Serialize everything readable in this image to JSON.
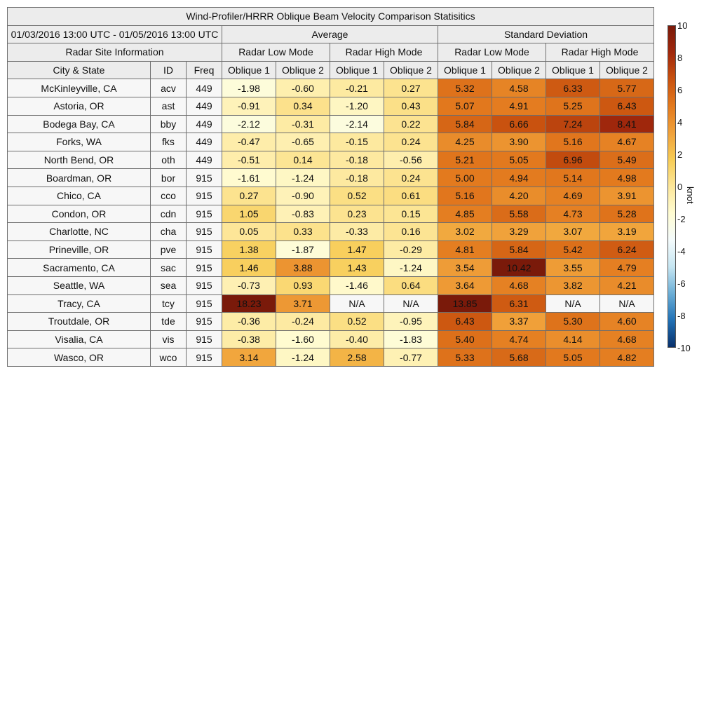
{
  "title": "Wind-Profiler/HRRR Oblique Beam Velocity Comparison Statisitics",
  "date_range": "01/03/2016 13:00 UTC - 01/05/2016 13:00 UTC",
  "group_average": "Average",
  "group_std": "Standard Deviation",
  "site_info_label": "Radar Site Information",
  "mode_low": "Radar Low Mode",
  "mode_high": "Radar High Mode",
  "col_city": "City & State",
  "col_id": "ID",
  "col_freq": "Freq",
  "col_ob1": "Oblique 1",
  "col_ob2": "Oblique 2",
  "colorbar": {
    "unit": "knot",
    "ticks": [
      "10",
      "8",
      "6",
      "4",
      "2",
      "0",
      "-2",
      "-4",
      "-6",
      "-8",
      "-10"
    ],
    "range": [
      -10,
      10
    ],
    "colors": [
      "#08306b",
      "#2171b5",
      "#6baed6",
      "#c6e6f2",
      "#f4fbfc",
      "#fffcd2",
      "#fde79a",
      "#f7cc55",
      "#f0a13a",
      "#e37a1e",
      "#c9520f",
      "#a1280c",
      "#7a1a0a"
    ]
  },
  "chart_data": {
    "type": "table",
    "title": "Wind-Profiler/HRRR Oblique Beam Velocity Comparison Statisitics",
    "columns": [
      "City & State",
      "ID",
      "Freq",
      "Average Low Oblique 1",
      "Average Low Oblique 2",
      "Average High Oblique 1",
      "Average High Oblique 2",
      "Std Low Oblique 1",
      "Std Low Oblique 2",
      "Std High Oblique 1",
      "Std High Oblique 2"
    ],
    "rows": [
      {
        "city": "McKinleyville, CA",
        "id": "acv",
        "freq": "449",
        "values": [
          "-1.98",
          "-0.60",
          "-0.21",
          "0.27",
          "5.32",
          "4.58",
          "6.33",
          "5.77"
        ]
      },
      {
        "city": "Astoria, OR",
        "id": "ast",
        "freq": "449",
        "values": [
          "-0.91",
          "0.34",
          "-1.20",
          "0.43",
          "5.07",
          "4.91",
          "5.25",
          "6.43"
        ]
      },
      {
        "city": "Bodega Bay, CA",
        "id": "bby",
        "freq": "449",
        "values": [
          "-2.12",
          "-0.31",
          "-2.14",
          "0.22",
          "5.84",
          "6.66",
          "7.24",
          "8.41"
        ]
      },
      {
        "city": "Forks, WA",
        "id": "fks",
        "freq": "449",
        "values": [
          "-0.47",
          "-0.65",
          "-0.15",
          "0.24",
          "4.25",
          "3.90",
          "5.16",
          "4.67"
        ]
      },
      {
        "city": "North Bend, OR",
        "id": "oth",
        "freq": "449",
        "values": [
          "-0.51",
          "0.14",
          "-0.18",
          "-0.56",
          "5.21",
          "5.05",
          "6.96",
          "5.49"
        ]
      },
      {
        "city": "Boardman, OR",
        "id": "bor",
        "freq": "915",
        "values": [
          "-1.61",
          "-1.24",
          "-0.18",
          "0.24",
          "5.00",
          "4.94",
          "5.14",
          "4.98"
        ]
      },
      {
        "city": "Chico, CA",
        "id": "cco",
        "freq": "915",
        "values": [
          "0.27",
          "-0.90",
          "0.52",
          "0.61",
          "5.16",
          "4.20",
          "4.69",
          "3.91"
        ]
      },
      {
        "city": "Condon, OR",
        "id": "cdn",
        "freq": "915",
        "values": [
          "1.05",
          "-0.83",
          "0.23",
          "0.15",
          "4.85",
          "5.58",
          "4.73",
          "5.28"
        ]
      },
      {
        "city": "Charlotte, NC",
        "id": "cha",
        "freq": "915",
        "values": [
          "0.05",
          "0.33",
          "-0.33",
          "0.16",
          "3.02",
          "3.29",
          "3.07",
          "3.19"
        ]
      },
      {
        "city": "Prineville, OR",
        "id": "pve",
        "freq": "915",
        "values": [
          "1.38",
          "-1.87",
          "1.47",
          "-0.29",
          "4.81",
          "5.84",
          "5.42",
          "6.24"
        ]
      },
      {
        "city": "Sacramento, CA",
        "id": "sac",
        "freq": "915",
        "values": [
          "1.46",
          "3.88",
          "1.43",
          "-1.24",
          "3.54",
          "10.42",
          "3.55",
          "4.79"
        ]
      },
      {
        "city": "Seattle, WA",
        "id": "sea",
        "freq": "915",
        "values": [
          "-0.73",
          "0.93",
          "-1.46",
          "0.64",
          "3.64",
          "4.68",
          "3.82",
          "4.21"
        ]
      },
      {
        "city": "Tracy, CA",
        "id": "tcy",
        "freq": "915",
        "values": [
          "18.23",
          "3.71",
          "N/A",
          "N/A",
          "13.85",
          "6.31",
          "N/A",
          "N/A"
        ]
      },
      {
        "city": "Troutdale, OR",
        "id": "tde",
        "freq": "915",
        "values": [
          "-0.36",
          "-0.24",
          "0.52",
          "-0.95",
          "6.43",
          "3.37",
          "5.30",
          "4.60"
        ]
      },
      {
        "city": "Visalia, CA",
        "id": "vis",
        "freq": "915",
        "values": [
          "-0.38",
          "-1.60",
          "-0.40",
          "-1.83",
          "5.40",
          "4.74",
          "4.14",
          "4.68"
        ]
      },
      {
        "city": "Wasco, OR",
        "id": "wco",
        "freq": "915",
        "values": [
          "3.14",
          "-1.24",
          "2.58",
          "-0.77",
          "5.33",
          "5.68",
          "5.05",
          "4.82"
        ]
      }
    ]
  }
}
